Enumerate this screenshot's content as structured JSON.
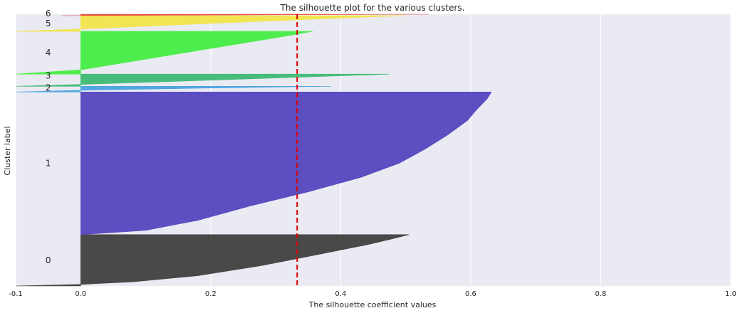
{
  "chart_data": {
    "type": "area",
    "title": "The silhouette plot for the various clusters.",
    "xlabel": "The silhouette coefficient values",
    "ylabel": "Cluster label",
    "xlim": [
      -0.1,
      1.0
    ],
    "ylim": [
      0,
      381
    ],
    "xticks": [
      -0.1,
      0.0,
      0.2,
      0.4,
      0.6,
      0.8,
      1.0
    ],
    "xtick_labels": [
      "-0.1",
      "0.0",
      "0.2",
      "0.4",
      "0.6",
      "0.8",
      "1.0"
    ],
    "grid": true,
    "average_silhouette": 0.333,
    "clusters": [
      {
        "label": "0",
        "y_lower": 0,
        "y_upper": 72,
        "max": 0.505,
        "min": -0.1,
        "color": "#404040",
        "profile": [
          [
            0,
            -0.1
          ],
          [
            0.03,
            0.0
          ],
          [
            0.08,
            0.08
          ],
          [
            0.2,
            0.18
          ],
          [
            0.4,
            0.28
          ],
          [
            0.6,
            0.36
          ],
          [
            0.8,
            0.44
          ],
          [
            0.92,
            0.48
          ],
          [
            1,
            0.505
          ]
        ]
      },
      {
        "label": "1",
        "y_lower": 72,
        "y_upper": 272,
        "max": 0.632,
        "min": 0.0,
        "color": "#5546bf",
        "profile": [
          [
            0,
            0.0
          ],
          [
            0.03,
            0.1
          ],
          [
            0.1,
            0.18
          ],
          [
            0.2,
            0.26
          ],
          [
            0.3,
            0.35
          ],
          [
            0.4,
            0.43
          ],
          [
            0.5,
            0.49
          ],
          [
            0.6,
            0.53
          ],
          [
            0.7,
            0.565
          ],
          [
            0.8,
            0.595
          ],
          [
            0.88,
            0.61
          ],
          [
            0.95,
            0.625
          ],
          [
            1,
            0.632
          ]
        ]
      },
      {
        "label": "2",
        "y_lower": 272,
        "y_upper": 280,
        "max": 0.385,
        "min": -0.1,
        "color": "#4aa3df",
        "profile": [
          [
            0,
            -0.1
          ],
          [
            0.3,
            0.0
          ],
          [
            0.7,
            0.2
          ],
          [
            1,
            0.385
          ]
        ]
      },
      {
        "label": "3",
        "y_lower": 280,
        "y_upper": 297,
        "max": 0.475,
        "min": -0.1,
        "color": "#3fba74",
        "profile": [
          [
            0,
            -0.1
          ],
          [
            0.15,
            0.0
          ],
          [
            0.5,
            0.2
          ],
          [
            1,
            0.475
          ]
        ]
      },
      {
        "label": "4",
        "y_lower": 297,
        "y_upper": 357,
        "max": 0.357,
        "min": -0.1,
        "color": "#45ed45",
        "profile": [
          [
            0,
            -0.1
          ],
          [
            0.1,
            0.0
          ],
          [
            0.3,
            0.08
          ],
          [
            0.6,
            0.2
          ],
          [
            0.85,
            0.3
          ],
          [
            1,
            0.357
          ]
        ]
      },
      {
        "label": "5",
        "y_lower": 357,
        "y_upper": 379,
        "max": 0.5,
        "min": -0.1,
        "color": "#f1e54a",
        "profile": [
          [
            0,
            -0.1
          ],
          [
            0.15,
            0.0
          ],
          [
            0.5,
            0.2
          ],
          [
            0.85,
            0.4
          ],
          [
            1,
            0.5
          ]
        ]
      },
      {
        "label": "6",
        "y_lower": 379,
        "y_upper": 381,
        "max": 0.535,
        "min": -0.03,
        "color": "#e84a3f",
        "profile": [
          [
            0,
            -0.03
          ],
          [
            0.4,
            0.2
          ],
          [
            1,
            0.535
          ]
        ]
      }
    ]
  }
}
